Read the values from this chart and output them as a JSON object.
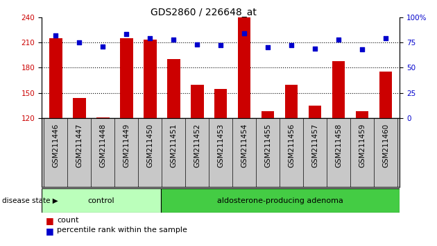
{
  "title": "GDS2860 / 226648_at",
  "categories": [
    "GSM211446",
    "GSM211447",
    "GSM211448",
    "GSM211449",
    "GSM211450",
    "GSM211451",
    "GSM211452",
    "GSM211453",
    "GSM211454",
    "GSM211455",
    "GSM211456",
    "GSM211457",
    "GSM211458",
    "GSM211459",
    "GSM211460"
  ],
  "count_values": [
    215,
    144,
    121,
    215,
    213,
    190,
    160,
    155,
    240,
    128,
    160,
    135,
    188,
    128,
    175
  ],
  "percentile_values": [
    82,
    75,
    71,
    83,
    79,
    78,
    73,
    72,
    84,
    70,
    72,
    69,
    78,
    68,
    79
  ],
  "left_ylim": [
    120,
    240
  ],
  "left_yticks": [
    120,
    150,
    180,
    210,
    240
  ],
  "right_ylim": [
    0,
    100
  ],
  "right_yticks": [
    0,
    25,
    50,
    75,
    100
  ],
  "bar_color": "#cc0000",
  "dot_color": "#0000cc",
  "n_control": 5,
  "control_label": "control",
  "adenoma_label": "aldosterone-producing adenoma",
  "disease_state_label": "disease state",
  "legend_count_label": "count",
  "legend_percentile_label": "percentile rank within the sample",
  "control_bg": "#bbffbb",
  "adenoma_bg": "#44cc44",
  "xtick_bg": "#c8c8c8",
  "background_color": "#ffffff",
  "title_fontsize": 10,
  "axis_fontsize": 8,
  "tick_fontsize": 7.5,
  "bar_width": 0.55
}
